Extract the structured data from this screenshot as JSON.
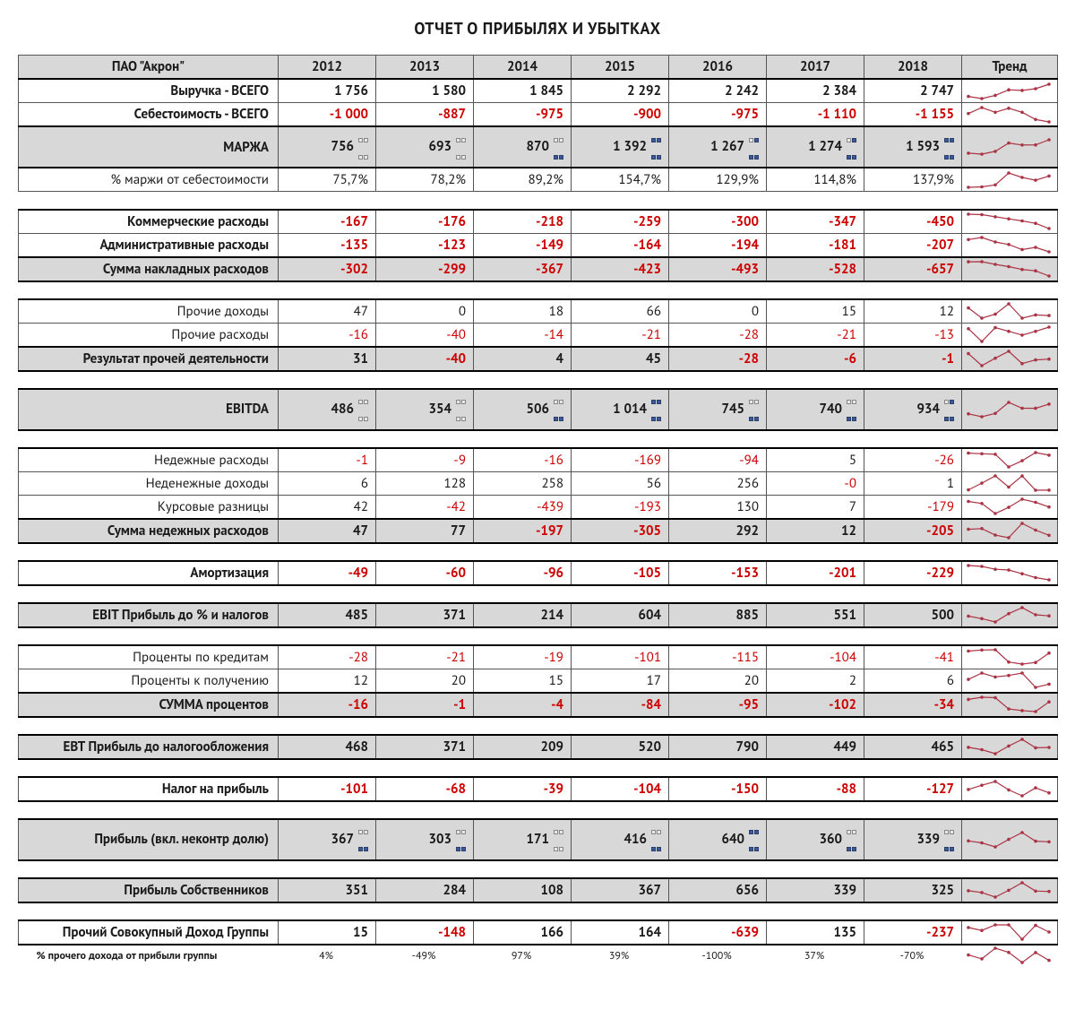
{
  "title": "ОТЧЕТ О ПРИБЫЛЯХ И УБЫТКАХ",
  "company_header": "ПАО \"Акрон\"",
  "years": [
    "2012",
    "2013",
    "2014",
    "2015",
    "2016",
    "2017",
    "2018"
  ],
  "trend_header": "Тренд",
  "colors": {
    "negative": "#cc0000",
    "positive": "#1a1a1a",
    "header_bg": "#d8d8d8",
    "spark_stroke": "#aa3344",
    "icon_filled": "#3b5998",
    "icon_empty": "#e8e8e8",
    "border": "#555555",
    "border_strong": "#000000"
  },
  "spark": {
    "width": 96,
    "height": 22,
    "padding": 3
  },
  "icon_map": {
    "0": "lvl0",
    "1": "lvl1",
    "2": "lvl2",
    "3": "lvl3",
    "4": "lvl4"
  },
  "rows": [
    {
      "type": "data",
      "label": "Выручка - ВСЕГО",
      "bold": true,
      "shade": false,
      "thick_top": false,
      "thick_bot": false,
      "values": [
        1756,
        1580,
        1845,
        2292,
        2242,
        2384,
        2747
      ],
      "raw": [
        1756,
        1580,
        1845,
        2292,
        2242,
        2384,
        2747
      ]
    },
    {
      "type": "data",
      "label": "Себестоимость - ВСЕГО",
      "bold": true,
      "shade": false,
      "values": [
        -1000,
        -887,
        -975,
        -900,
        -975,
        -1110,
        -1155
      ],
      "raw": [
        -1000,
        -887,
        -975,
        -900,
        -975,
        -1110,
        -1155
      ]
    },
    {
      "type": "data",
      "label": "МАРЖА",
      "bold": true,
      "shade": true,
      "thick_top": true,
      "thick_bot": true,
      "values": [
        756,
        693,
        870,
        1392,
        1267,
        1274,
        1593
      ],
      "raw": [
        756,
        693,
        870,
        1392,
        1267,
        1274,
        1593
      ],
      "icons": [
        0,
        0,
        1,
        4,
        3,
        3,
        4
      ]
    },
    {
      "type": "data",
      "label": "% маржи от себестоимости",
      "bold": false,
      "shade": false,
      "values": [
        "75,7%",
        "78,2%",
        "89,2%",
        "154,7%",
        "129,9%",
        "114,8%",
        "137,9%"
      ],
      "raw": [
        75.7,
        78.2,
        89.2,
        154.7,
        129.9,
        114.8,
        137.9
      ]
    },
    {
      "type": "spacer"
    },
    {
      "type": "data",
      "label": "Коммерческие расходы",
      "bold": true,
      "shade": false,
      "thick_top": true,
      "values": [
        -167,
        -176,
        -218,
        -259,
        -300,
        -347,
        -450
      ],
      "raw": [
        -167,
        -176,
        -218,
        -259,
        -300,
        -347,
        -450
      ]
    },
    {
      "type": "data",
      "label": "Административные расходы",
      "bold": true,
      "shade": false,
      "values": [
        -135,
        -123,
        -149,
        -164,
        -194,
        -181,
        -207
      ],
      "raw": [
        -135,
        -123,
        -149,
        -164,
        -194,
        -181,
        -207
      ]
    },
    {
      "type": "data",
      "label": "Сумма накладных расходов",
      "bold": true,
      "shade": true,
      "thick_top": true,
      "thick_bot": true,
      "values": [
        -302,
        -299,
        -367,
        -423,
        -493,
        -528,
        -657
      ],
      "raw": [
        -302,
        -299,
        -367,
        -423,
        -493,
        -528,
        -657
      ]
    },
    {
      "type": "spacer"
    },
    {
      "type": "data",
      "label": "Прочие доходы",
      "bold": false,
      "shade": false,
      "thick_top": true,
      "values": [
        47,
        0,
        18,
        66,
        0,
        15,
        12
      ],
      "raw": [
        47,
        0,
        18,
        66,
        0,
        15,
        12
      ]
    },
    {
      "type": "data",
      "label": "Прочие расходы",
      "bold": false,
      "shade": false,
      "values": [
        -16,
        -40,
        -14,
        -21,
        -28,
        -21,
        -13
      ],
      "raw": [
        -16,
        -40,
        -14,
        -21,
        -28,
        -21,
        -13
      ]
    },
    {
      "type": "data",
      "label": "Результат прочей деятельности",
      "bold": true,
      "shade": true,
      "thick_top": true,
      "thick_bot": true,
      "values": [
        31,
        -40,
        4,
        45,
        -28,
        -6,
        -1
      ],
      "raw": [
        31,
        -40,
        4,
        45,
        -28,
        -6,
        -1
      ]
    },
    {
      "type": "spacer"
    },
    {
      "type": "data",
      "label": "EBITDA",
      "bold": true,
      "shade": true,
      "thick_top": true,
      "thick_bot": true,
      "values": [
        486,
        354,
        506,
        1014,
        745,
        740,
        934
      ],
      "raw": [
        486,
        354,
        506,
        1014,
        745,
        740,
        934
      ],
      "icons": [
        0,
        0,
        1,
        4,
        2,
        2,
        3
      ]
    },
    {
      "type": "spacer"
    },
    {
      "type": "data",
      "label": "Недежные расходы",
      "bold": false,
      "shade": false,
      "thick_top": true,
      "values": [
        -1,
        -9,
        -16,
        -169,
        -94,
        5,
        -26
      ],
      "raw": [
        -1,
        -9,
        -16,
        -169,
        -94,
        5,
        -26
      ]
    },
    {
      "type": "data",
      "label": "Неденежные доходы",
      "bold": false,
      "shade": false,
      "values": [
        6,
        128,
        258,
        56,
        256,
        "-0",
        1
      ],
      "raw": [
        6,
        128,
        258,
        56,
        256,
        0,
        1
      ],
      "force_neg": [
        false,
        false,
        false,
        false,
        false,
        true,
        false
      ]
    },
    {
      "type": "data",
      "label": "Курсовые разницы",
      "bold": false,
      "shade": false,
      "values": [
        42,
        -42,
        -439,
        -193,
        130,
        7,
        -179
      ],
      "raw": [
        42,
        -42,
        -439,
        -193,
        130,
        7,
        -179
      ]
    },
    {
      "type": "data",
      "label": "Сумма недежных расходов",
      "bold": true,
      "shade": true,
      "thick_top": true,
      "thick_bot": true,
      "values": [
        47,
        77,
        -197,
        -305,
        292,
        12,
        -205
      ],
      "raw": [
        47,
        77,
        -197,
        -305,
        292,
        12,
        -205
      ]
    },
    {
      "type": "spacer"
    },
    {
      "type": "data",
      "label": "Амортизация",
      "bold": true,
      "shade": false,
      "thick_top": true,
      "thick_bot": true,
      "values": [
        -49,
        -60,
        -96,
        -105,
        -153,
        -201,
        -229
      ],
      "raw": [
        -49,
        -60,
        -96,
        -105,
        -153,
        -201,
        -229
      ]
    },
    {
      "type": "spacer"
    },
    {
      "type": "data",
      "label": "EBIT Прибыль до % и налогов",
      "bold": true,
      "shade": true,
      "thick_top": true,
      "thick_bot": true,
      "values": [
        485,
        371,
        214,
        604,
        885,
        551,
        500
      ],
      "raw": [
        485,
        371,
        214,
        604,
        885,
        551,
        500
      ]
    },
    {
      "type": "spacer"
    },
    {
      "type": "data",
      "label": "Проценты по кредитам",
      "bold": false,
      "shade": false,
      "thick_top": true,
      "values": [
        -28,
        -21,
        -19,
        -101,
        -115,
        -104,
        -41
      ],
      "raw": [
        -28,
        -21,
        -19,
        -101,
        -115,
        -104,
        -41
      ]
    },
    {
      "type": "data",
      "label": "Проценты к получению",
      "bold": false,
      "shade": false,
      "values": [
        12,
        20,
        15,
        17,
        20,
        2,
        6
      ],
      "raw": [
        12,
        20,
        15,
        17,
        20,
        2,
        6
      ]
    },
    {
      "type": "data",
      "label": "СУММА процентов",
      "bold": true,
      "shade": true,
      "thick_top": true,
      "thick_bot": true,
      "values": [
        -16,
        -1,
        -4,
        -84,
        -95,
        -102,
        -34
      ],
      "raw": [
        -16,
        -1,
        -4,
        -84,
        -95,
        -102,
        -34
      ]
    },
    {
      "type": "spacer"
    },
    {
      "type": "data",
      "label": "EBT Прибыль до налогообложения",
      "bold": true,
      "shade": true,
      "thick_top": true,
      "thick_bot": true,
      "values": [
        468,
        371,
        209,
        520,
        790,
        449,
        465
      ],
      "raw": [
        468,
        371,
        209,
        520,
        790,
        449,
        465
      ]
    },
    {
      "type": "spacer"
    },
    {
      "type": "data",
      "label": "Налог на прибыль",
      "bold": true,
      "shade": false,
      "thick_top": true,
      "thick_bot": true,
      "values": [
        -101,
        -68,
        -39,
        -104,
        -150,
        -88,
        -127
      ],
      "raw": [
        -101,
        -68,
        -39,
        -104,
        -150,
        -88,
        -127
      ]
    },
    {
      "type": "spacer"
    },
    {
      "type": "data",
      "label": "Прибыль  (вкл. неконтр долю)",
      "bold": true,
      "shade": true,
      "thick_top": true,
      "thick_bot": true,
      "values": [
        367,
        303,
        171,
        416,
        640,
        360,
        339
      ],
      "raw": [
        367,
        303,
        171,
        416,
        640,
        360,
        339
      ],
      "icons": [
        2,
        1,
        0,
        2,
        4,
        2,
        1
      ]
    },
    {
      "type": "spacer"
    },
    {
      "type": "data",
      "label": "Прибыль Собственников",
      "bold": true,
      "shade": true,
      "thick_top": true,
      "thick_bot": true,
      "values": [
        351,
        284,
        108,
        367,
        656,
        339,
        325
      ],
      "raw": [
        351,
        284,
        108,
        367,
        656,
        339,
        325
      ]
    },
    {
      "type": "spacer"
    },
    {
      "type": "data",
      "label": "Прочий Совокупный Доход Группы",
      "bold": true,
      "shade": false,
      "thick_top": true,
      "thick_bot": true,
      "values": [
        15,
        -148,
        166,
        164,
        -639,
        135,
        -237
      ],
      "raw": [
        15,
        -148,
        166,
        164,
        -639,
        135,
        -237
      ]
    },
    {
      "type": "footer",
      "label": "% прочего дохода от прибыли группы",
      "values": [
        "4%",
        "-49%",
        "97%",
        "39%",
        "-100%",
        "37%",
        "-70%"
      ],
      "raw": [
        4,
        -49,
        97,
        39,
        -100,
        37,
        -70
      ]
    }
  ]
}
